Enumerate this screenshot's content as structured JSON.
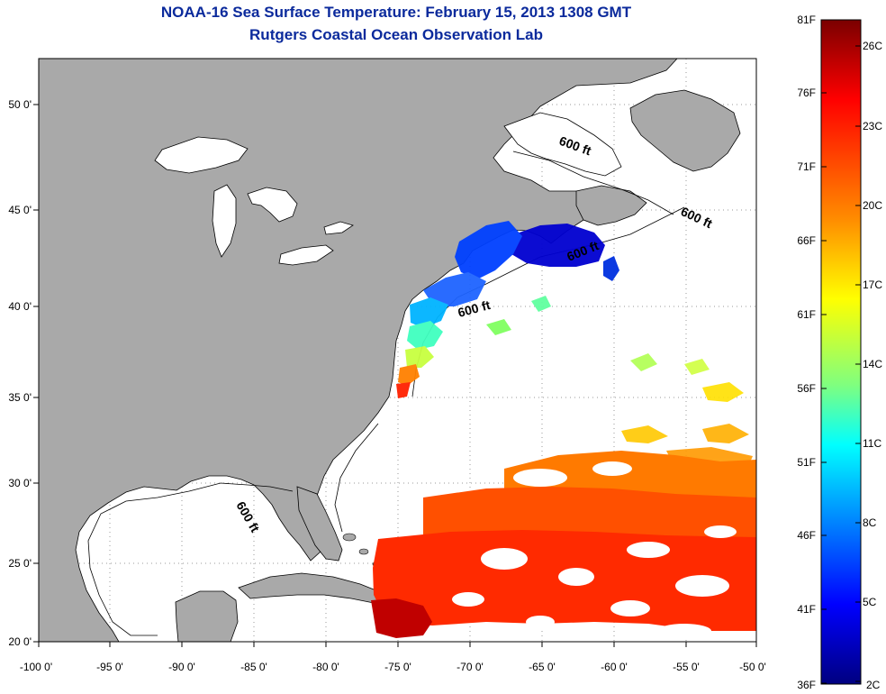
{
  "header": {
    "title": "NOAA-16 Sea Surface Temperature:  February 15, 2013 1308 GMT",
    "subtitle": "Rutgers Coastal Ocean Observation Lab"
  },
  "axes": {
    "x_ticks": [
      "-100 0'",
      "-95 0'",
      "-90 0'",
      "-85 0'",
      "-80 0'",
      "-75 0'",
      "-70 0'",
      "-65 0'",
      "-60 0'",
      "-55 0'",
      "-50 0'"
    ],
    "y_ticks": [
      "50 0'",
      "45 0'",
      "40 0'",
      "35 0'",
      "30 0'",
      "25 0'",
      "20 0'"
    ]
  },
  "map": {
    "land_color": "#a9a9a9",
    "water_color": "#ffffff",
    "contour_labels": [
      "600 ft",
      "600 ft",
      "600 ft",
      "600 ft",
      "600 ft"
    ]
  },
  "colorbar": {
    "fahrenheit_labels": [
      "81F",
      "76F",
      "71F",
      "66F",
      "61F",
      "56F",
      "51F",
      "46F",
      "41F",
      "36F"
    ],
    "celsius_labels": [
      "26C",
      "23C",
      "20C",
      "17C",
      "14C",
      "11C",
      "8C",
      "5C",
      "2C"
    ],
    "colors": [
      "#800000",
      "#ff0000",
      "#ff8000",
      "#ffff00",
      "#80ff80",
      "#00ffff",
      "#0080ff",
      "#0000ff",
      "#00008f"
    ]
  }
}
